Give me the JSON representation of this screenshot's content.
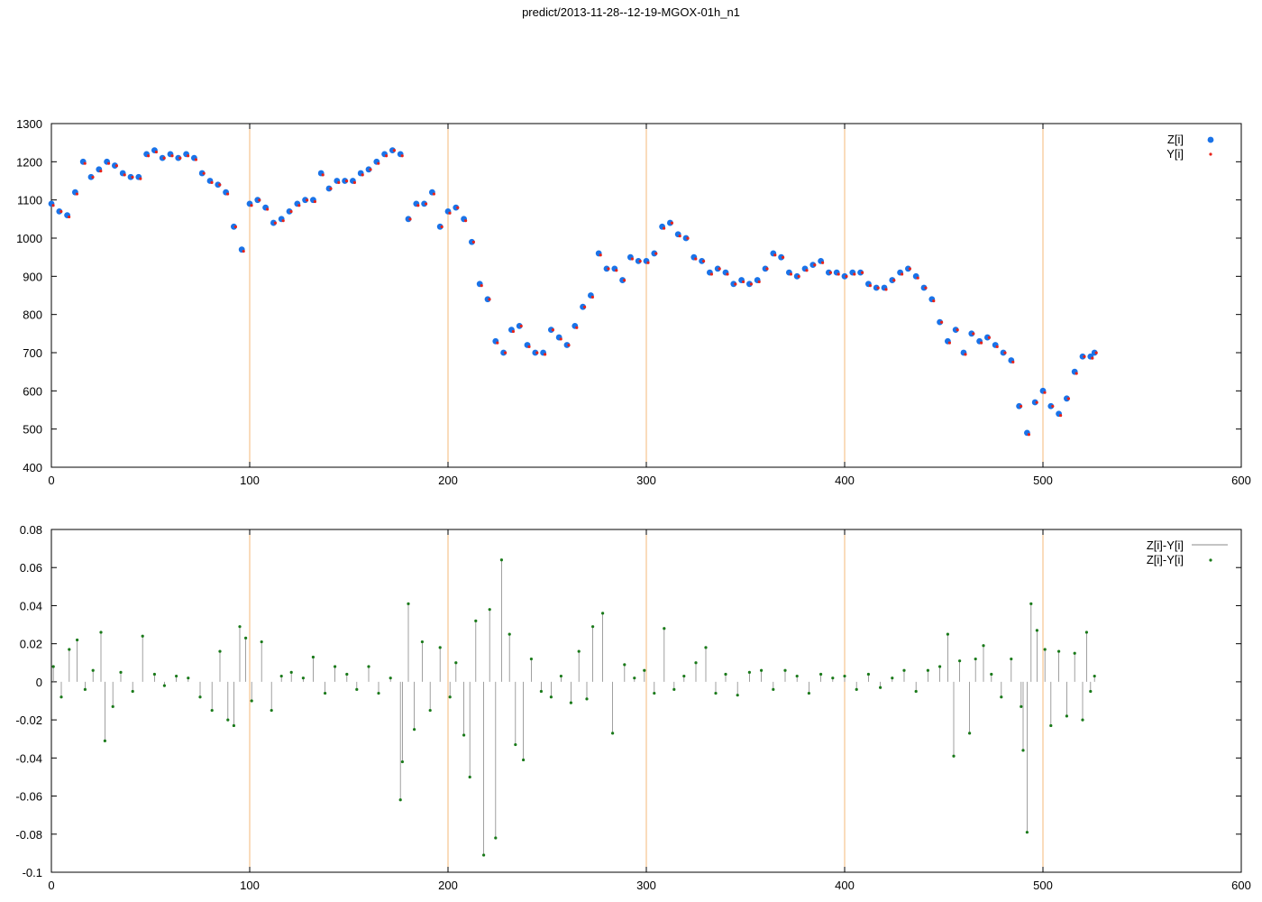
{
  "title": "predict/2013-11-28--12-19-MGOX-01h_n1",
  "chart_data": [
    {
      "type": "scatter",
      "xlim": [
        0,
        600
      ],
      "ylim": [
        400,
        1300
      ],
      "xticks": [
        0,
        100,
        200,
        300,
        400,
        500,
        600
      ],
      "yticks": [
        400,
        500,
        600,
        700,
        800,
        900,
        1000,
        1100,
        1200,
        1300
      ],
      "vlines": [
        100,
        200,
        300,
        400,
        500
      ],
      "legend_position": "top-right",
      "colors": {
        "vline": "#f5b97a",
        "z": "#1a73e8",
        "y": "#e8231a"
      },
      "series": [
        {
          "name": "Z[i]",
          "x": [
            0,
            4,
            8,
            12,
            16,
            20,
            24,
            28,
            32,
            36,
            40,
            44,
            48,
            52,
            56,
            60,
            64,
            68,
            72,
            76,
            80,
            84,
            88,
            92,
            96,
            100,
            104,
            108,
            112,
            116,
            120,
            124,
            128,
            132,
            136,
            140,
            144,
            148,
            152,
            156,
            160,
            164,
            168,
            172,
            176,
            180,
            184,
            188,
            192,
            196,
            200,
            204,
            208,
            212,
            216,
            220,
            224,
            228,
            232,
            236,
            240,
            244,
            248,
            252,
            256,
            260,
            264,
            268,
            272,
            276,
            280,
            284,
            288,
            292,
            296,
            300,
            304,
            308,
            312,
            316,
            320,
            324,
            328,
            332,
            336,
            340,
            344,
            348,
            352,
            356,
            360,
            364,
            368,
            372,
            376,
            380,
            384,
            388,
            392,
            396,
            400,
            404,
            408,
            412,
            416,
            420,
            424,
            428,
            432,
            436,
            440,
            444,
            448,
            452,
            456,
            460,
            464,
            468,
            472,
            476,
            480,
            484,
            488,
            492,
            496,
            500,
            504,
            508,
            512,
            516,
            520,
            524,
            526
          ],
          "y": [
            1090,
            1070,
            1060,
            1120,
            1200,
            1160,
            1180,
            1200,
            1190,
            1170,
            1160,
            1160,
            1220,
            1230,
            1210,
            1220,
            1210,
            1220,
            1210,
            1170,
            1150,
            1140,
            1120,
            1030,
            970,
            1090,
            1100,
            1080,
            1040,
            1050,
            1070,
            1090,
            1100,
            1100,
            1170,
            1130,
            1150,
            1150,
            1150,
            1170,
            1180,
            1200,
            1220,
            1230,
            1220,
            1050,
            1090,
            1090,
            1120,
            1030,
            1070,
            1080,
            1050,
            990,
            880,
            840,
            730,
            700,
            760,
            770,
            720,
            700,
            700,
            760,
            740,
            720,
            770,
            820,
            850,
            960,
            920,
            920,
            890,
            950,
            940,
            940,
            960,
            1030,
            1040,
            1010,
            1000,
            950,
            940,
            910,
            920,
            910,
            880,
            890,
            880,
            890,
            920,
            960,
            950,
            910,
            900,
            920,
            930,
            940,
            910,
            910,
            900,
            910,
            910,
            880,
            870,
            870,
            890,
            910,
            920,
            900,
            870,
            840,
            780,
            730,
            760,
            700,
            750,
            730,
            740,
            720,
            700,
            680,
            560,
            490,
            570,
            600,
            560,
            540,
            580,
            650,
            690,
            690,
            700
          ]
        },
        {
          "name": "Y[i]",
          "x": [
            0,
            4,
            8,
            12,
            16,
            20,
            24,
            28,
            32,
            36,
            40,
            44,
            48,
            52,
            56,
            60,
            64,
            68,
            72,
            76,
            80,
            84,
            88,
            92,
            96,
            100,
            104,
            108,
            112,
            116,
            120,
            124,
            128,
            132,
            136,
            140,
            144,
            148,
            152,
            156,
            160,
            164,
            168,
            172,
            176,
            180,
            184,
            188,
            192,
            196,
            200,
            204,
            208,
            212,
            216,
            220,
            224,
            228,
            232,
            236,
            240,
            244,
            248,
            252,
            256,
            260,
            264,
            268,
            272,
            276,
            280,
            284,
            288,
            292,
            296,
            300,
            304,
            308,
            312,
            316,
            320,
            324,
            328,
            332,
            336,
            340,
            344,
            348,
            352,
            356,
            360,
            364,
            368,
            372,
            376,
            380,
            384,
            388,
            392,
            396,
            400,
            404,
            408,
            412,
            416,
            420,
            424,
            428,
            432,
            436,
            440,
            444,
            448,
            452,
            456,
            460,
            464,
            468,
            472,
            476,
            480,
            484,
            488,
            492,
            496,
            500,
            504,
            508,
            512,
            516,
            520,
            524,
            526
          ],
          "y": [
            1088,
            1072,
            1058,
            1118,
            1198,
            1162,
            1178,
            1198,
            1192,
            1168,
            1162,
            1158,
            1218,
            1228,
            1212,
            1218,
            1212,
            1218,
            1208,
            1172,
            1148,
            1142,
            1118,
            1032,
            968,
            1088,
            1102,
            1078,
            1042,
            1048,
            1072,
            1088,
            1102,
            1098,
            1168,
            1132,
            1148,
            1152,
            1148,
            1168,
            1182,
            1198,
            1218,
            1232,
            1218,
            1052,
            1088,
            1092,
            1118,
            1032,
            1068,
            1082,
            1048,
            992,
            878,
            842,
            728,
            702,
            758,
            772,
            718,
            702,
            698,
            762,
            738,
            722,
            768,
            822,
            848,
            958,
            922,
            918,
            892,
            948,
            942,
            938,
            962,
            1028,
            1042,
            1008,
            1002,
            948,
            942,
            908,
            922,
            908,
            882,
            888,
            882,
            888,
            922,
            958,
            952,
            908,
            902,
            918,
            932,
            938,
            912,
            908,
            902,
            908,
            912,
            878,
            872,
            868,
            892,
            908,
            922,
            898,
            872,
            838,
            782,
            728,
            762,
            698,
            752,
            728,
            742,
            718,
            702,
            678,
            562,
            488,
            572,
            598,
            562,
            538,
            582,
            648,
            692,
            688,
            702
          ]
        }
      ]
    },
    {
      "type": "line",
      "xlim": [
        0,
        600
      ],
      "ylim": [
        -0.1,
        0.08
      ],
      "xticks": [
        0,
        100,
        200,
        300,
        400,
        500,
        600
      ],
      "yticks": [
        -0.1,
        -0.08,
        -0.06,
        -0.04,
        -0.02,
        0,
        0.02,
        0.04,
        0.06,
        0.08
      ],
      "vlines": [
        100,
        200,
        300,
        400,
        500
      ],
      "legend_position": "top-right",
      "colors": {
        "vline": "#f5b97a",
        "impulse": "#888888",
        "point": "#1a7a1a"
      },
      "series": [
        {
          "name": "Z[i]-Y[i]",
          "style": "impulses",
          "x": [
            1,
            5,
            9,
            13,
            17,
            21,
            25,
            27,
            31,
            35,
            41,
            46,
            52,
            57,
            63,
            69,
            75,
            81,
            85,
            89,
            92,
            95,
            98,
            101,
            106,
            111,
            116,
            121,
            127,
            132,
            138,
            143,
            149,
            154,
            160,
            165,
            171,
            176,
            177,
            180,
            183,
            187,
            191,
            196,
            201,
            204,
            208,
            211,
            214,
            218,
            221,
            224,
            227,
            231,
            234,
            238,
            242,
            247,
            252,
            257,
            262,
            266,
            270,
            273,
            278,
            283,
            289,
            294,
            299,
            304,
            309,
            314,
            319,
            325,
            330,
            335,
            340,
            346,
            352,
            358,
            364,
            370,
            376,
            382,
            388,
            394,
            400,
            406,
            412,
            418,
            424,
            430,
            436,
            442,
            448,
            452,
            455,
            458,
            463,
            466,
            470,
            474,
            479,
            484,
            489,
            490,
            492,
            494,
            497,
            501,
            504,
            508,
            512,
            516,
            520,
            522,
            524,
            526
          ],
          "y": [
            0.008,
            -0.008,
            0.017,
            0.022,
            -0.004,
            0.006,
            0.026,
            -0.031,
            -0.013,
            0.005,
            -0.005,
            0.024,
            0.004,
            -0.002,
            0.003,
            0.002,
            -0.008,
            -0.015,
            0.016,
            -0.02,
            -0.023,
            0.029,
            0.023,
            -0.01,
            0.021,
            -0.015,
            0.003,
            0.005,
            0.002,
            0.013,
            -0.006,
            0.008,
            0.004,
            -0.004,
            0.008,
            -0.006,
            0.002,
            -0.062,
            -0.042,
            0.041,
            -0.025,
            0.021,
            -0.015,
            0.018,
            -0.008,
            0.01,
            -0.028,
            -0.05,
            0.032,
            -0.091,
            0.038,
            -0.082,
            0.064,
            0.025,
            -0.033,
            -0.041,
            0.012,
            -0.005,
            -0.008,
            0.003,
            -0.011,
            0.016,
            -0.009,
            0.029,
            0.036,
            -0.027,
            0.009,
            0.002,
            0.006,
            -0.006,
            0.028,
            -0.004,
            0.003,
            0.01,
            0.018,
            -0.006,
            0.004,
            -0.007,
            0.005,
            0.006,
            -0.004,
            0.006,
            0.003,
            -0.006,
            0.004,
            0.002,
            0.003,
            -0.004,
            0.004,
            -0.003,
            0.002,
            0.006,
            -0.005,
            0.006,
            0.008,
            0.025,
            -0.039,
            0.011,
            -0.027,
            0.012,
            0.019,
            0.004,
            -0.008,
            0.012,
            -0.013,
            -0.036,
            -0.079,
            0.041,
            0.027,
            0.017,
            -0.023,
            0.016,
            -0.018,
            0.015,
            -0.02,
            0.026,
            -0.005,
            0.003
          ]
        },
        {
          "name": "Z[i]-Y[i]",
          "style": "points",
          "x": [
            1,
            5,
            9,
            13,
            17,
            21,
            25,
            27,
            31,
            35,
            41,
            46,
            52,
            57,
            63,
            69,
            75,
            81,
            85,
            89,
            92,
            95,
            98,
            101,
            106,
            111,
            116,
            121,
            127,
            132,
            138,
            143,
            149,
            154,
            160,
            165,
            171,
            176,
            177,
            180,
            183,
            187,
            191,
            196,
            201,
            204,
            208,
            211,
            214,
            218,
            221,
            224,
            227,
            231,
            234,
            238,
            242,
            247,
            252,
            257,
            262,
            266,
            270,
            273,
            278,
            283,
            289,
            294,
            299,
            304,
            309,
            314,
            319,
            325,
            330,
            335,
            340,
            346,
            352,
            358,
            364,
            370,
            376,
            382,
            388,
            394,
            400,
            406,
            412,
            418,
            424,
            430,
            436,
            442,
            448,
            452,
            455,
            458,
            463,
            466,
            470,
            474,
            479,
            484,
            489,
            490,
            492,
            494,
            497,
            501,
            504,
            508,
            512,
            516,
            520,
            522,
            524,
            526
          ],
          "y": [
            0.008,
            -0.008,
            0.017,
            0.022,
            -0.004,
            0.006,
            0.026,
            -0.031,
            -0.013,
            0.005,
            -0.005,
            0.024,
            0.004,
            -0.002,
            0.003,
            0.002,
            -0.008,
            -0.015,
            0.016,
            -0.02,
            -0.023,
            0.029,
            0.023,
            -0.01,
            0.021,
            -0.015,
            0.003,
            0.005,
            0.002,
            0.013,
            -0.006,
            0.008,
            0.004,
            -0.004,
            0.008,
            -0.006,
            0.002,
            -0.062,
            -0.042,
            0.041,
            -0.025,
            0.021,
            -0.015,
            0.018,
            -0.008,
            0.01,
            -0.028,
            -0.05,
            0.032,
            -0.091,
            0.038,
            -0.082,
            0.064,
            0.025,
            -0.033,
            -0.041,
            0.012,
            -0.005,
            -0.008,
            0.003,
            -0.011,
            0.016,
            -0.009,
            0.029,
            0.036,
            -0.027,
            0.009,
            0.002,
            0.006,
            -0.006,
            0.028,
            -0.004,
            0.003,
            0.01,
            0.018,
            -0.006,
            0.004,
            -0.007,
            0.005,
            0.006,
            -0.004,
            0.006,
            0.003,
            -0.006,
            0.004,
            0.002,
            0.003,
            -0.004,
            0.004,
            -0.003,
            0.002,
            0.006,
            -0.005,
            0.006,
            0.008,
            0.025,
            -0.039,
            0.011,
            -0.027,
            0.012,
            0.019,
            0.004,
            -0.008,
            0.012,
            -0.013,
            -0.036,
            -0.079,
            0.041,
            0.027,
            0.017,
            -0.023,
            0.016,
            -0.018,
            0.015,
            -0.02,
            0.026,
            -0.005,
            0.003
          ]
        }
      ]
    }
  ]
}
